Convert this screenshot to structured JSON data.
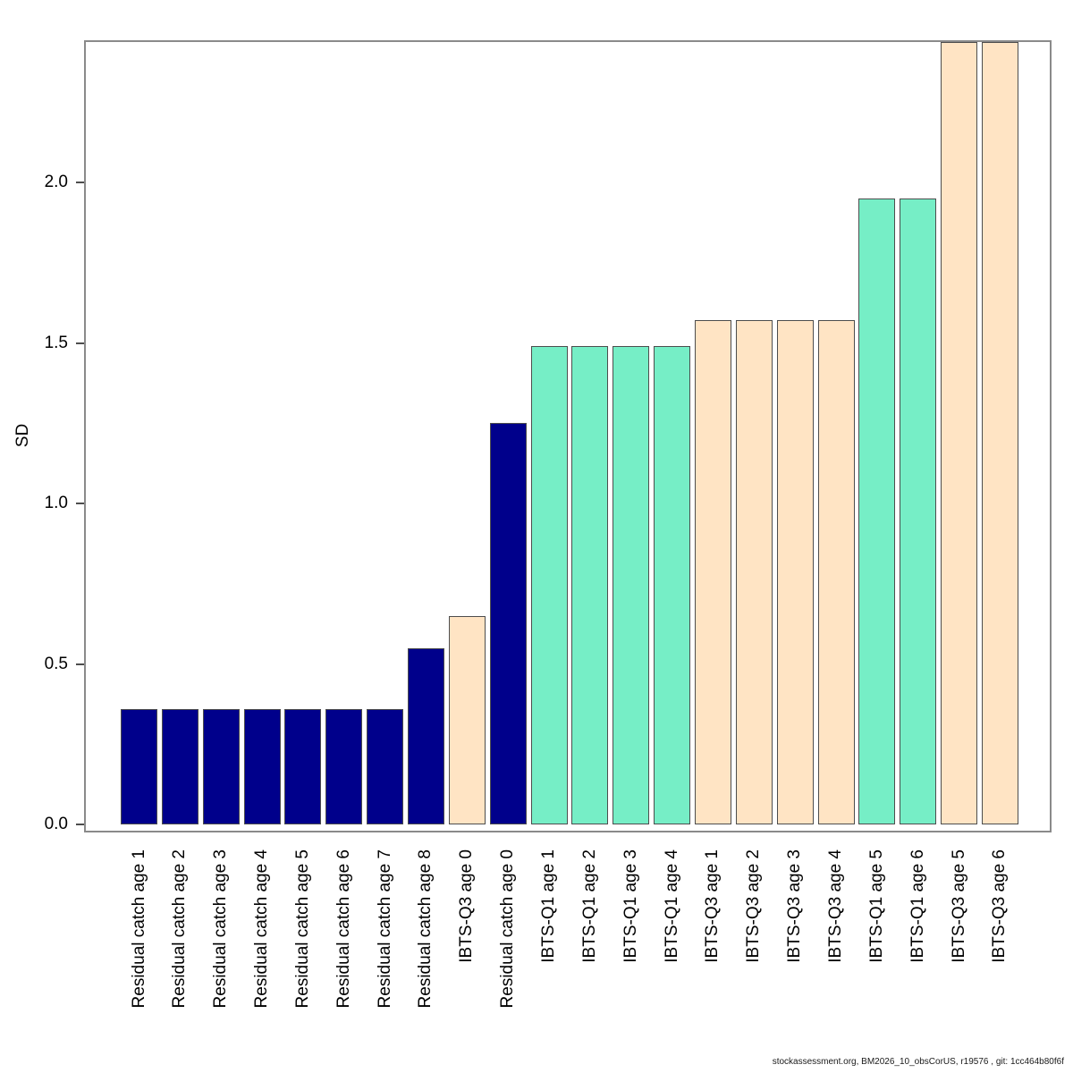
{
  "figure": {
    "footer": "stockassessment.org, BM2026_10_obsCorUS, r19576 , git: 1cc464b80f6f"
  },
  "chart_data": {
    "type": "bar",
    "title": "",
    "xlabel": "",
    "ylabel": "SD",
    "ylim": [
      0,
      2.44
    ],
    "yticks": [
      0.0,
      0.5,
      1.0,
      1.5,
      2.0
    ],
    "ytick_labels": [
      "0.0",
      "0.5",
      "1.0",
      "1.5",
      "2.0"
    ],
    "grid": "off",
    "legend": "none",
    "frame_color": "#8a8a8a",
    "bar_border_color": "#4d4d4d",
    "fleet_colors": {
      "Residual catch": "#00008B",
      "IBTS-Q1": "#76EEC6",
      "IBTS-Q3": "#FFE4C4"
    },
    "categories": [
      "Residual catch age 1",
      "Residual catch age 2",
      "Residual catch age 3",
      "Residual catch age 4",
      "Residual catch age 5",
      "Residual catch age 6",
      "Residual catch age 7",
      "Residual catch age 8",
      "IBTS-Q3 age 0",
      "Residual catch age 0",
      "IBTS-Q1 age 1",
      "IBTS-Q1 age 2",
      "IBTS-Q1 age 3",
      "IBTS-Q1 age 4",
      "IBTS-Q3 age 1",
      "IBTS-Q3 age 2",
      "IBTS-Q3 age 3",
      "IBTS-Q3 age 4",
      "IBTS-Q1 age 5",
      "IBTS-Q1 age 6",
      "IBTS-Q3 age 5",
      "IBTS-Q3 age 6"
    ],
    "bars": [
      {
        "label": "Residual catch age 1",
        "fleet": "Residual catch",
        "value": 0.36
      },
      {
        "label": "Residual catch age 2",
        "fleet": "Residual catch",
        "value": 0.36
      },
      {
        "label": "Residual catch age 3",
        "fleet": "Residual catch",
        "value": 0.36
      },
      {
        "label": "Residual catch age 4",
        "fleet": "Residual catch",
        "value": 0.36
      },
      {
        "label": "Residual catch age 5",
        "fleet": "Residual catch",
        "value": 0.36
      },
      {
        "label": "Residual catch age 6",
        "fleet": "Residual catch",
        "value": 0.36
      },
      {
        "label": "Residual catch age 7",
        "fleet": "Residual catch",
        "value": 0.36
      },
      {
        "label": "Residual catch age 8",
        "fleet": "Residual catch",
        "value": 0.55
      },
      {
        "label": "IBTS-Q3 age 0",
        "fleet": "IBTS-Q3",
        "value": 0.65
      },
      {
        "label": "Residual catch age 0",
        "fleet": "Residual catch",
        "value": 1.25
      },
      {
        "label": "IBTS-Q1 age 1",
        "fleet": "IBTS-Q1",
        "value": 1.49
      },
      {
        "label": "IBTS-Q1 age 2",
        "fleet": "IBTS-Q1",
        "value": 1.49
      },
      {
        "label": "IBTS-Q1 age 3",
        "fleet": "IBTS-Q1",
        "value": 1.49
      },
      {
        "label": "IBTS-Q1 age 4",
        "fleet": "IBTS-Q1",
        "value": 1.49
      },
      {
        "label": "IBTS-Q3 age 1",
        "fleet": "IBTS-Q3",
        "value": 1.57
      },
      {
        "label": "IBTS-Q3 age 2",
        "fleet": "IBTS-Q3",
        "value": 1.57
      },
      {
        "label": "IBTS-Q3 age 3",
        "fleet": "IBTS-Q3",
        "value": 1.57
      },
      {
        "label": "IBTS-Q3 age 4",
        "fleet": "IBTS-Q3",
        "value": 1.57
      },
      {
        "label": "IBTS-Q1 age 5",
        "fleet": "IBTS-Q1",
        "value": 1.95
      },
      {
        "label": "IBTS-Q1 age 6",
        "fleet": "IBTS-Q1",
        "value": 1.95
      },
      {
        "label": "IBTS-Q3 age 5",
        "fleet": "IBTS-Q3",
        "value": 2.44
      },
      {
        "label": "IBTS-Q3 age 6",
        "fleet": "IBTS-Q3",
        "value": 2.44
      }
    ]
  }
}
